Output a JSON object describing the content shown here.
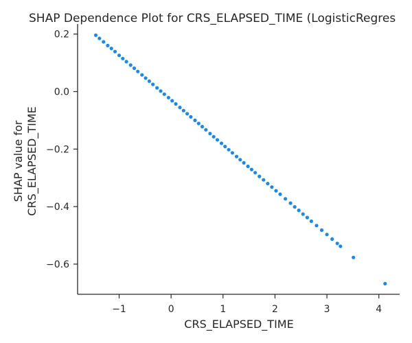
{
  "chart_data": {
    "type": "scatter",
    "title": "SHAP Dependence Plot for CRS_ELAPSED_TIME (LogisticRegres",
    "xlabel": "CRS_ELAPSED_TIME",
    "ylabel_lines": [
      "SHAP value for",
      "CRS_ELAPSED_TIME"
    ],
    "xlim": [
      -1.8,
      4.4
    ],
    "ylim": [
      -0.705,
      0.235
    ],
    "xticks": [
      -1,
      0,
      1,
      2,
      3,
      4
    ],
    "xtick_labels": [
      "−1",
      "0",
      "1",
      "2",
      "3",
      "4"
    ],
    "yticks": [
      0.2,
      0.0,
      -0.2,
      -0.4,
      -0.6
    ],
    "ytick_labels": [
      "0.2",
      "0.0",
      "−0.2",
      "−0.4",
      "−0.6"
    ],
    "grid": false,
    "point_color": "#1e88e5",
    "relationship": "linear",
    "x_range_dense": [
      -1.45,
      1.7
    ],
    "line_endpoints": [
      [
        -1.45,
        0.196
      ],
      [
        4.12,
        -0.668
      ]
    ],
    "x": [
      -1.45,
      -1.38,
      -1.3,
      -1.22,
      -1.15,
      -1.08,
      -1.0,
      -0.93,
      -0.86,
      -0.78,
      -0.71,
      -0.64,
      -0.56,
      -0.49,
      -0.42,
      -0.35,
      -0.27,
      -0.2,
      -0.13,
      -0.05,
      0.02,
      0.09,
      0.17,
      0.24,
      0.31,
      0.38,
      0.46,
      0.53,
      0.6,
      0.67,
      0.75,
      0.82,
      0.89,
      0.97,
      1.04,
      1.11,
      1.18,
      1.26,
      1.33,
      1.4,
      1.48,
      1.55,
      1.62,
      1.7,
      1.78,
      1.86,
      1.94,
      2.02,
      2.1,
      2.2,
      2.3,
      2.38,
      2.46,
      2.54,
      2.62,
      2.7,
      2.8,
      2.9,
      3.0,
      3.1,
      3.2,
      3.26,
      3.51,
      4.12
    ],
    "y": [
      0.196,
      0.185,
      0.173,
      0.16,
      0.15,
      0.139,
      0.126,
      0.115,
      0.104,
      0.092,
      0.081,
      0.07,
      0.058,
      0.047,
      0.036,
      0.025,
      0.013,
      0.002,
      -0.009,
      -0.021,
      -0.032,
      -0.043,
      -0.055,
      -0.066,
      -0.077,
      -0.088,
      -0.1,
      -0.111,
      -0.122,
      -0.133,
      -0.146,
      -0.157,
      -0.168,
      -0.18,
      -0.191,
      -0.202,
      -0.213,
      -0.226,
      -0.237,
      -0.248,
      -0.26,
      -0.271,
      -0.282,
      -0.295,
      -0.307,
      -0.32,
      -0.332,
      -0.345,
      -0.357,
      -0.373,
      -0.388,
      -0.401,
      -0.413,
      -0.426,
      -0.438,
      -0.451,
      -0.466,
      -0.482,
      -0.497,
      -0.513,
      -0.528,
      -0.538,
      -0.577,
      -0.668
    ]
  }
}
